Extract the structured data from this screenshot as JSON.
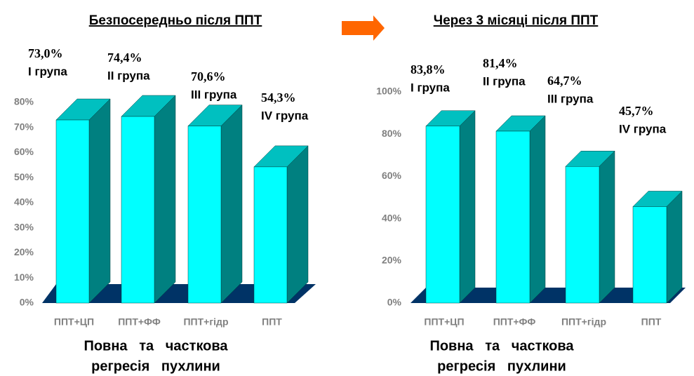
{
  "chart_data": [
    {
      "type": "bar3d",
      "title": "Безпосередньо після ППТ",
      "categories": [
        "ППТ+ЦП",
        "ППТ+ФФ",
        "ППТ+гідр",
        "ППТ"
      ],
      "values": [
        73.0,
        74.4,
        70.6,
        54.3
      ],
      "value_labels": [
        "73,0%",
        "74,4%",
        "70,6%",
        "54,3%"
      ],
      "group_labels": [
        "І група",
        "ІІ група",
        "ІІІ група",
        "IV група"
      ],
      "color": "#00ffff",
      "ylim": [
        0,
        80
      ],
      "yticks": [
        {
          "value": 0,
          "label": "0%"
        },
        {
          "value": 10,
          "label": "10%"
        },
        {
          "value": 20,
          "label": "20%"
        },
        {
          "value": 30,
          "label": "30%"
        },
        {
          "value": 40,
          "label": "40%"
        },
        {
          "value": 50,
          "label": "50%"
        },
        {
          "value": 60,
          "label": "60%"
        },
        {
          "value": 70,
          "label": "70%"
        },
        {
          "value": 80,
          "label": "80%"
        }
      ],
      "xlabel": [
        "Повна   та   часткова",
        "регресія   пухлини"
      ]
    },
    {
      "type": "bar3d",
      "title": "Через 3 місяці після ППТ",
      "categories": [
        "ППТ+ЦП",
        "ППТ+ФФ",
        "ППТ+гідр",
        "ППТ"
      ],
      "values": [
        83.8,
        81.4,
        64.7,
        45.7
      ],
      "value_labels": [
        "83,8%",
        "81,4%",
        "64,7%",
        "45,7%"
      ],
      "group_labels": [
        "І група",
        "ІІ група",
        "ІІІ група",
        "IV група"
      ],
      "color": "#00ffff",
      "ylim": [
        0,
        100
      ],
      "yticks": [
        {
          "value": 0,
          "label": "0%"
        },
        {
          "value": 20,
          "label": "20%"
        },
        {
          "value": 40,
          "label": "40%"
        },
        {
          "value": 60,
          "label": "60%"
        },
        {
          "value": 80,
          "label": "80%"
        },
        {
          "value": 100,
          "label": "100%"
        }
      ],
      "xlabel": [
        "Повна   та   часткова",
        "регресія   пухлини"
      ]
    }
  ]
}
